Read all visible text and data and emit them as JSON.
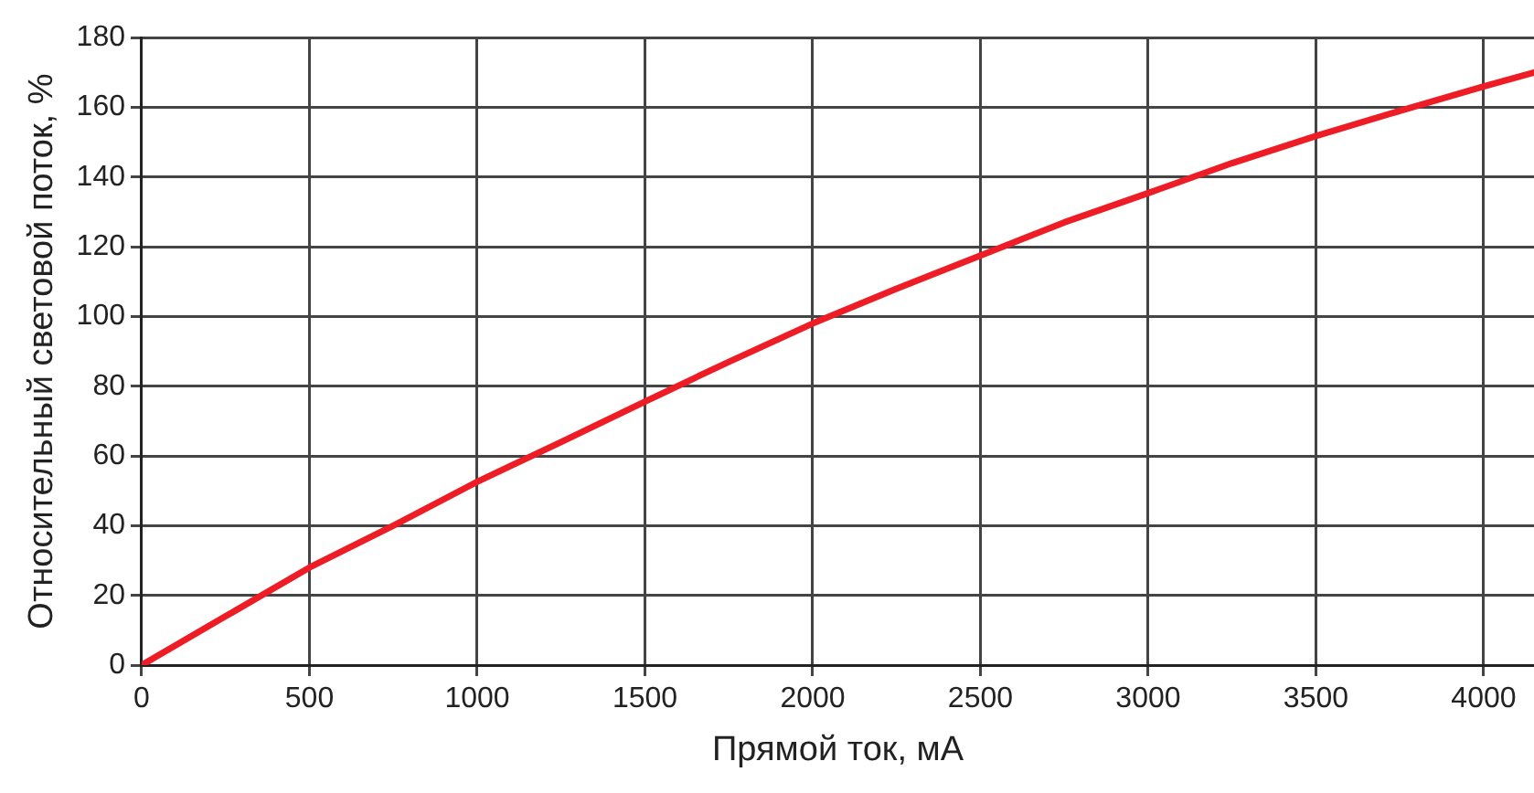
{
  "chart_data": {
    "type": "line",
    "xlabel": "Прямой ток, мА",
    "ylabel": "Относительный световой поток, %",
    "x": [
      0,
      250,
      500,
      750,
      1000,
      1250,
      1500,
      1750,
      2000,
      2250,
      2500,
      2750,
      3000,
      3250,
      3500,
      3750,
      4000,
      4150
    ],
    "series": [
      {
        "color": "#ee1c25",
        "values": [
          0,
          14,
          28,
          40,
          52.6,
          64,
          75.6,
          87,
          98,
          108,
          117.5,
          127,
          135.4,
          144,
          151.8,
          159,
          166,
          170
        ]
      }
    ],
    "xlim": [
      0,
      4150
    ],
    "xticks": [
      0,
      500,
      1000,
      1500,
      2000,
      2500,
      3000,
      3500,
      4000
    ],
    "ylim": [
      0,
      180
    ],
    "yticks": [
      0,
      20,
      40,
      60,
      80,
      100,
      120,
      140,
      160,
      180
    ],
    "grid": true,
    "legend": false,
    "marker": "none",
    "line_style": "solid"
  }
}
